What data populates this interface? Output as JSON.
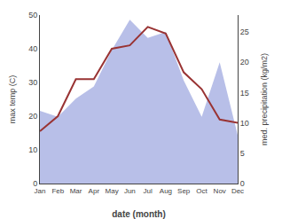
{
  "chart_data": {
    "type": "line",
    "categories": [
      "Jan",
      "Feb",
      "Mar",
      "Apr",
      "May",
      "Jun",
      "Jul",
      "Aug",
      "Sep",
      "Oct",
      "Nov",
      "Dec"
    ],
    "series": [
      {
        "type": "area",
        "color": "#b8bfe8",
        "axis": "y2",
        "values": [
          12.0,
          11.0,
          14.0,
          16.0,
          22.0,
          27.0,
          24.0,
          25.0,
          17.0,
          11.0,
          20.0,
          8.0
        ]
      },
      {
        "type": "line",
        "color": "#993333",
        "values": [
          15.5,
          20.0,
          31.0,
          31.0,
          40.0,
          41.0,
          46.5,
          44.5,
          33.0,
          28.0,
          19.0,
          18.0
        ]
      }
    ],
    "xlabel": "date (month)",
    "ylabel": "max temp (C)",
    "y2label": "med. precipitation (kg/m2)",
    "ylim": [
      0,
      50
    ],
    "yticks": [
      0,
      10,
      20,
      30,
      40,
      50
    ],
    "y2lim": [
      0,
      27.78
    ],
    "y2ticks": [
      0,
      5,
      10,
      15,
      20,
      25
    ],
    "grid": false
  }
}
